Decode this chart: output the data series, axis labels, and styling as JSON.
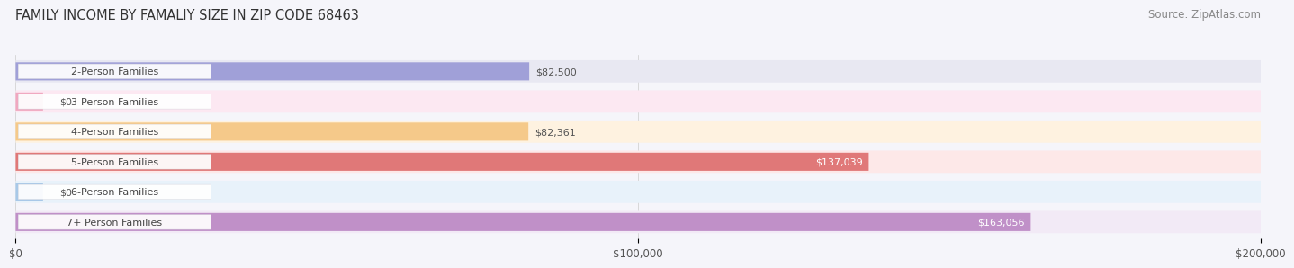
{
  "title": "FAMILY INCOME BY FAMALIY SIZE IN ZIP CODE 68463",
  "source": "Source: ZipAtlas.com",
  "categories": [
    "2-Person Families",
    "3-Person Families",
    "4-Person Families",
    "5-Person Families",
    "6-Person Families",
    "7+ Person Families"
  ],
  "values": [
    82500,
    0,
    82361,
    137039,
    0,
    163056
  ],
  "bar_colors": [
    "#a0a0d8",
    "#f0a8c0",
    "#f5c98a",
    "#e07878",
    "#a8c8e8",
    "#c090c8"
  ],
  "bar_bg_colors": [
    "#e8e8f2",
    "#fce8f2",
    "#fef2e0",
    "#fde8e8",
    "#e8f2fa",
    "#f2eaf6"
  ],
  "value_labels": [
    "$82,500",
    "$0",
    "$82,361",
    "$137,039",
    "$0",
    "$163,056"
  ],
  "value_inside": [
    false,
    false,
    false,
    true,
    false,
    true
  ],
  "xlim": [
    0,
    200000
  ],
  "xticks": [
    0,
    100000,
    200000
  ],
  "xticklabels": [
    "$0",
    "$100,000",
    "$200,000"
  ],
  "bg_color": "#f5f5fa",
  "title_fontsize": 10.5,
  "source_fontsize": 8.5,
  "bar_fontsize": 8,
  "value_fontsize": 8
}
